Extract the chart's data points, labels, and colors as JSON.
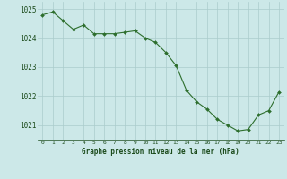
{
  "x": [
    0,
    1,
    2,
    3,
    4,
    5,
    6,
    7,
    8,
    9,
    10,
    11,
    12,
    13,
    14,
    15,
    16,
    17,
    18,
    19,
    20,
    21,
    22,
    23
  ],
  "y": [
    1024.8,
    1024.9,
    1024.6,
    1024.3,
    1024.45,
    1024.15,
    1024.15,
    1024.15,
    1024.2,
    1024.25,
    1024.0,
    1023.85,
    1023.5,
    1023.05,
    1022.2,
    1021.8,
    1021.55,
    1021.2,
    1021.0,
    1020.8,
    1020.85,
    1021.35,
    1021.5,
    1022.15
  ],
  "line_color": "#2d6e2d",
  "marker": "D",
  "marker_size": 2.0,
  "bg_color": "#cce8e8",
  "grid_color": "#aacccc",
  "xlabel": "Graphe pression niveau de la mer (hPa)",
  "xlabel_color": "#1a4a1a",
  "tick_color": "#1a4a1a",
  "ylim": [
    1020.5,
    1025.25
  ],
  "xlim": [
    -0.5,
    23.5
  ],
  "yticks": [
    1021,
    1022,
    1023,
    1024,
    1025
  ],
  "xticks": [
    0,
    1,
    2,
    3,
    4,
    5,
    6,
    7,
    8,
    9,
    10,
    11,
    12,
    13,
    14,
    15,
    16,
    17,
    18,
    19,
    20,
    21,
    22,
    23
  ]
}
